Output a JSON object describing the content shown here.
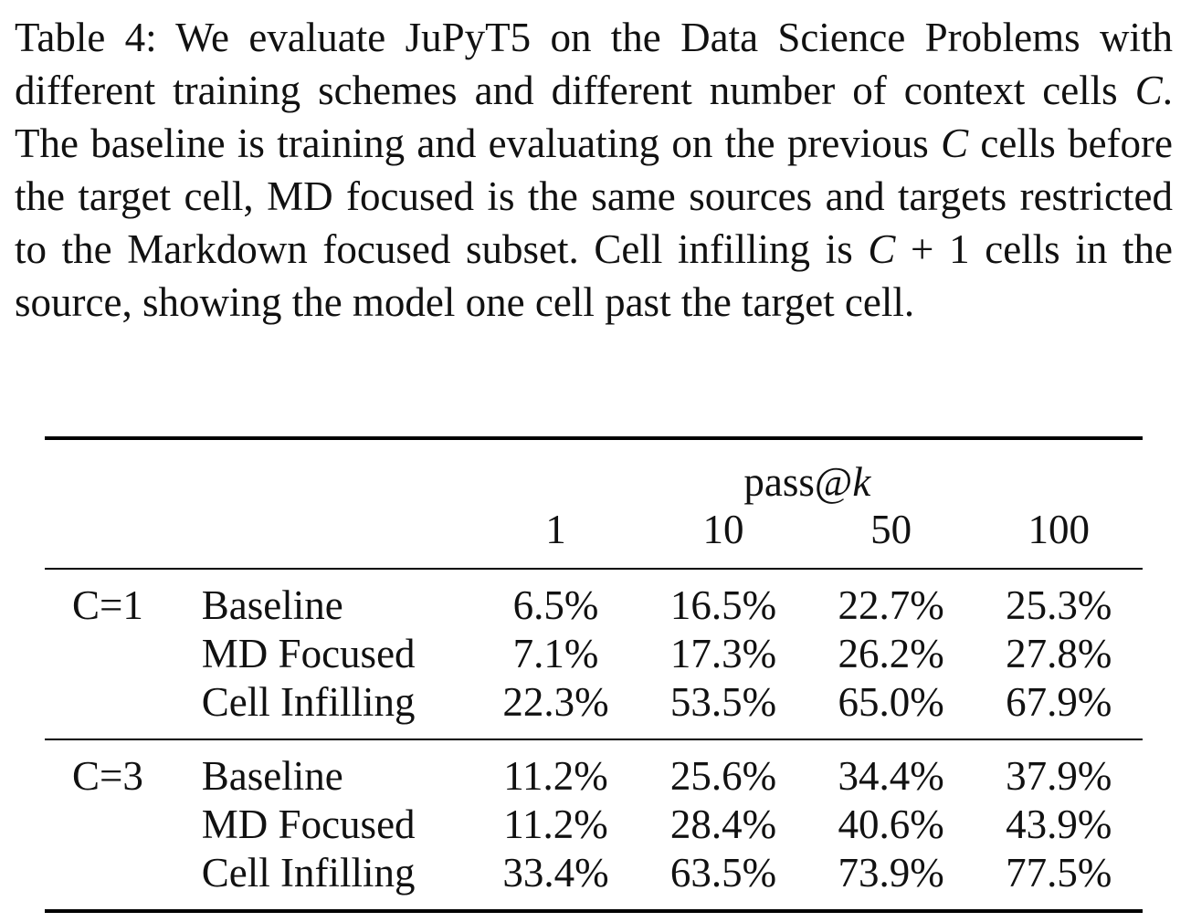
{
  "caption": {
    "part1": "Table 4: We evaluate JuPyT5 on the Data Science Problems with different training schemes and different number of context cells ",
    "var_c1": "C",
    "part2": ". The baseline is training and evaluating on the previous ",
    "var_c2": "C",
    "part3": " cells before the target cell, MD focused is the same sources and targets restricted to the Markdown focused subset. Cell infilling is ",
    "var_c3": "C",
    "op_plus": " + 1",
    "part4": " cells in the source, showing the model one cell past the target cell."
  },
  "table": {
    "header": {
      "metric_prefix": "pass@",
      "metric_var": "k",
      "columns": [
        "1",
        "10",
        "50",
        "100"
      ]
    },
    "groups": [
      {
        "label": "C=1",
        "rows": [
          {
            "method": "Baseline",
            "values": [
              "6.5%",
              "16.5%",
              "22.7%",
              "25.3%"
            ]
          },
          {
            "method": "MD Focused",
            "values": [
              "7.1%",
              "17.3%",
              "26.2%",
              "27.8%"
            ]
          },
          {
            "method": "Cell Infilling",
            "values": [
              "22.3%",
              "53.5%",
              "65.0%",
              "67.9%"
            ]
          }
        ]
      },
      {
        "label": "C=3",
        "rows": [
          {
            "method": "Baseline",
            "values": [
              "11.2%",
              "25.6%",
              "34.4%",
              "37.9%"
            ]
          },
          {
            "method": "MD Focused",
            "values": [
              "11.2%",
              "28.4%",
              "40.6%",
              "43.9%"
            ]
          },
          {
            "method": "Cell Infilling",
            "values": [
              "33.4%",
              "63.5%",
              "73.9%",
              "77.5%"
            ]
          }
        ]
      }
    ]
  }
}
